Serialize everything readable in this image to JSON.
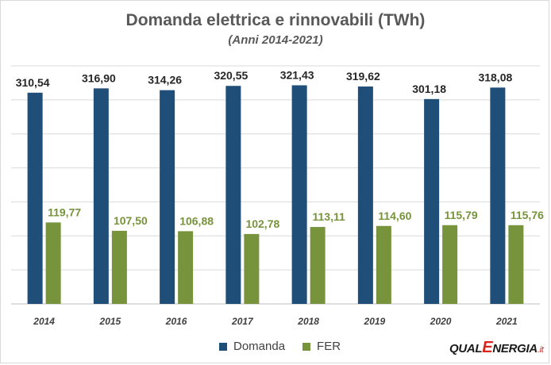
{
  "chart_data": {
    "type": "bar",
    "title": "Domanda elettrica e rinnovabili (TWh)",
    "subtitle": "(Anni 2014-2021)",
    "categories": [
      "2014",
      "2015",
      "2016",
      "2017",
      "2018",
      "2019",
      "2020",
      "2021"
    ],
    "series": [
      {
        "name": "Domanda",
        "color": "#1f4e79",
        "label_color": "#262626",
        "values": [
          310.54,
          316.9,
          314.26,
          320.55,
          321.43,
          319.62,
          301.18,
          318.08
        ],
        "labels": [
          "310,54",
          "316,90",
          "314,26",
          "320,55",
          "321,43",
          "319,62",
          "301,18",
          "318,08"
        ]
      },
      {
        "name": "FER",
        "color": "#77933c",
        "label_color": "#77933c",
        "values": [
          119.77,
          107.5,
          106.88,
          102.78,
          113.11,
          114.6,
          115.79,
          115.76
        ],
        "labels": [
          "119,77",
          "107,50",
          "106,88",
          "102,78",
          "113,11",
          "114,60",
          "115,79",
          "115,76"
        ]
      }
    ],
    "ylim": [
      0,
      350
    ],
    "y_gridline_step": 50,
    "y_tick_labels_shown": false,
    "grid": true,
    "legend_position": "bottom"
  },
  "logo": {
    "part1": "QUAL",
    "part2": "E",
    "part3": "NERGIA",
    "part4": ".it"
  }
}
